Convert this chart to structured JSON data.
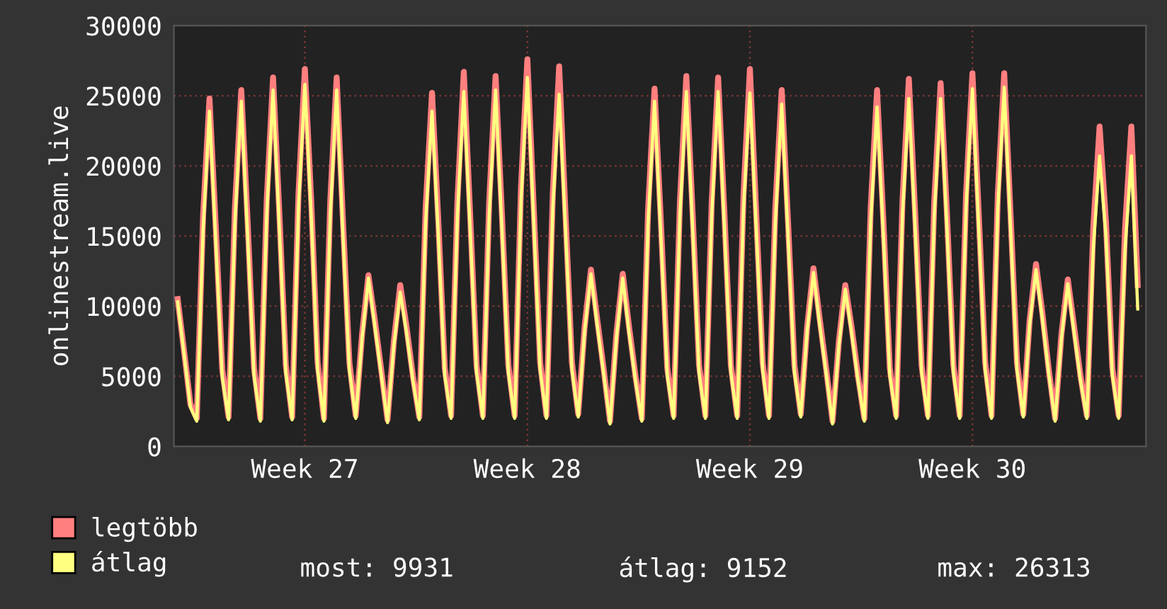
{
  "chart_data": {
    "type": "line",
    "ylabel": "onlinestream.live",
    "categories": [
      null,
      null,
      null,
      null,
      null,
      null,
      null,
      null,
      null,
      null,
      null,
      null,
      null,
      null,
      null,
      null,
      null,
      null,
      null,
      null,
      "Week 27",
      null,
      null,
      null,
      null,
      null,
      null,
      null,
      null,
      null,
      null,
      null,
      null,
      null,
      null,
      null,
      null,
      null,
      null,
      null,
      null,
      null,
      null,
      null,
      null,
      null,
      null,
      null,
      null,
      null,
      null,
      null,
      null,
      null,
      null,
      "Week 28",
      null,
      null,
      null,
      null,
      null,
      null,
      null,
      null,
      null,
      null,
      null,
      null,
      null,
      null,
      null,
      null,
      null,
      null,
      null,
      null,
      null,
      null,
      null,
      null,
      null,
      null,
      null,
      null,
      null,
      null,
      null,
      null,
      null,
      null,
      "Week 29",
      null,
      null,
      null,
      null,
      null,
      null,
      null,
      null,
      null,
      null,
      null,
      null,
      null,
      null,
      null,
      null,
      null,
      null,
      null,
      null,
      null,
      null,
      null,
      null,
      null,
      null,
      null,
      null,
      null,
      null,
      null,
      null,
      null,
      null,
      "Week 30",
      null,
      null,
      null,
      null,
      null,
      null,
      null,
      null,
      null,
      null,
      null,
      null,
      null,
      null,
      null,
      null,
      null,
      null,
      null,
      null,
      null,
      null,
      null,
      null,
      null,
      null
    ],
    "series": [
      {
        "name": "legtöbb",
        "color": "#ff7f7f",
        "values": [
          10500,
          6800,
          3000,
          2000,
          16500,
          24800,
          15500,
          5500,
          2100,
          17000,
          25400,
          16000,
          5600,
          2000,
          17500,
          26300,
          16500,
          5800,
          2100,
          18000,
          26900,
          17500,
          6000,
          2000,
          17500,
          26300,
          16000,
          6000,
          2200,
          8000,
          12200,
          9000,
          5500,
          1900,
          7500,
          11500,
          8500,
          5000,
          2100,
          17000,
          25200,
          16000,
          5600,
          2200,
          17500,
          26700,
          16500,
          5800,
          2200,
          17500,
          26400,
          16500,
          5800,
          2200,
          18500,
          27600,
          17000,
          6000,
          2200,
          18000,
          27100,
          16500,
          6000,
          2300,
          8500,
          12600,
          9000,
          5500,
          1800,
          8000,
          12300,
          8500,
          5000,
          2000,
          17000,
          25500,
          16000,
          5600,
          2200,
          17500,
          26400,
          16500,
          5800,
          2200,
          17500,
          26300,
          16500,
          5800,
          2200,
          18000,
          26900,
          16500,
          6000,
          2200,
          17000,
          25400,
          16000,
          5800,
          2300,
          8500,
          12700,
          9000,
          5500,
          1800,
          7500,
          11500,
          8500,
          5000,
          2000,
          17000,
          25400,
          16000,
          5600,
          2200,
          17500,
          26200,
          16500,
          5800,
          2200,
          17500,
          25900,
          16500,
          5800,
          2200,
          18000,
          26600,
          16500,
          6000,
          2200,
          18000,
          26600,
          16500,
          6000,
          2300,
          9000,
          13000,
          9500,
          5500,
          2000,
          8000,
          11900,
          8500,
          5000,
          2200,
          15500,
          22800,
          16000,
          5600,
          2200,
          15500,
          22800,
          11500
        ]
      },
      {
        "name": "átlag",
        "color": "#ffff80",
        "values": [
          10300,
          6600,
          2800,
          1800,
          15500,
          23900,
          14500,
          5000,
          1900,
          16000,
          24600,
          15000,
          5100,
          1800,
          16500,
          25400,
          15500,
          5300,
          1900,
          17000,
          25800,
          16500,
          5500,
          1800,
          16500,
          25400,
          15000,
          5500,
          2000,
          7700,
          12000,
          8600,
          5200,
          1700,
          7200,
          11000,
          8100,
          4700,
          1900,
          16000,
          23900,
          15000,
          5100,
          2000,
          16500,
          25300,
          15500,
          5300,
          2000,
          16500,
          25400,
          15500,
          5300,
          2000,
          17500,
          26300,
          16000,
          5500,
          2000,
          17000,
          25100,
          15500,
          5500,
          2100,
          8200,
          12300,
          8600,
          5200,
          1600,
          7700,
          12000,
          8100,
          4700,
          1800,
          16000,
          24600,
          15000,
          5100,
          2000,
          16500,
          25300,
          15500,
          5300,
          2000,
          16500,
          25300,
          15500,
          5300,
          2000,
          17000,
          25200,
          15500,
          5500,
          2000,
          16000,
          24400,
          15000,
          5300,
          2100,
          8200,
          12400,
          8600,
          5200,
          1600,
          7200,
          11200,
          8100,
          4700,
          1800,
          16000,
          24200,
          15000,
          5100,
          2000,
          16500,
          24800,
          15500,
          5300,
          2000,
          16500,
          24800,
          15500,
          5300,
          2000,
          17000,
          25500,
          15500,
          5500,
          2000,
          17000,
          25600,
          15500,
          5500,
          2100,
          8700,
          12600,
          9100,
          5200,
          1800,
          7700,
          11600,
          8100,
          4700,
          2000,
          14000,
          20700,
          15000,
          5100,
          2000,
          14000,
          20700,
          9800
        ]
      }
    ],
    "ylim": [
      0,
      30000
    ],
    "yticks": [
      0,
      5000,
      10000,
      15000,
      20000,
      25000,
      30000
    ],
    "grid": true,
    "legend": "bottom left",
    "annotations": [
      "most: 9931",
      "átlag: 9152",
      "max: 26313"
    ]
  }
}
